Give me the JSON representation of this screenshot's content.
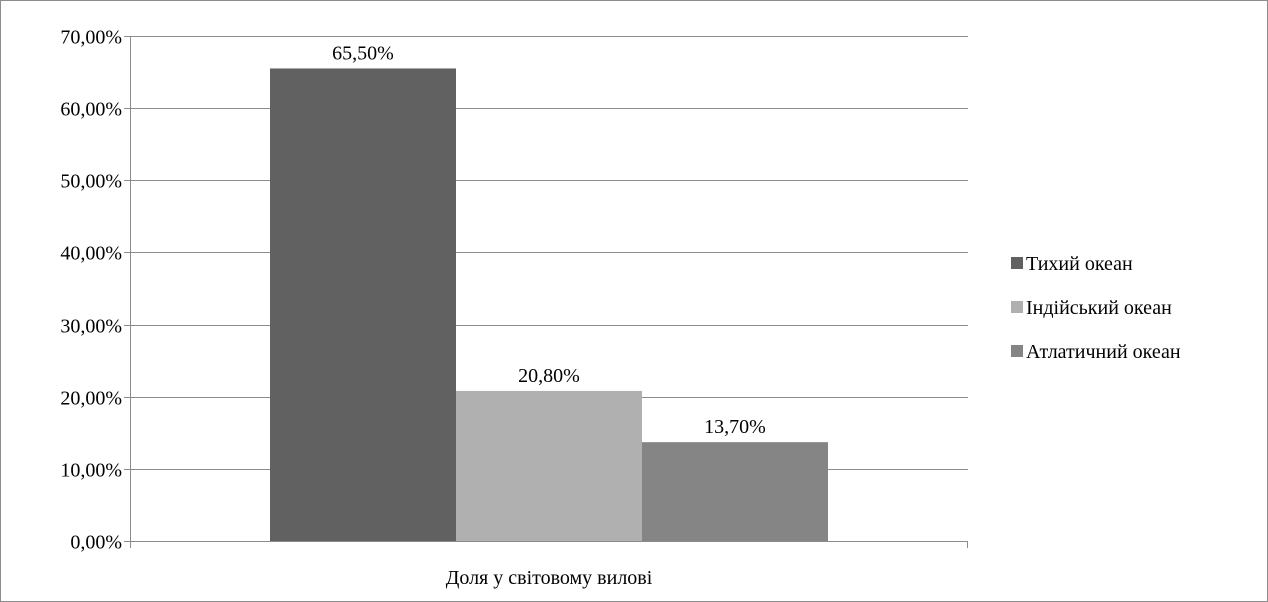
{
  "chart_data": {
    "type": "bar",
    "title": "",
    "xlabel": "",
    "ylabel": "",
    "categories": [
      "Доля у світовому вилові"
    ],
    "series": [
      {
        "name": "Тихий океан",
        "values": [
          65.5
        ],
        "label": "65,50%",
        "color": "#616161"
      },
      {
        "name": "Індійський океан",
        "values": [
          20.8
        ],
        "label": "20,80%",
        "color": "#b0b0b0"
      },
      {
        "name": "Атлатичний океан",
        "values": [
          13.7
        ],
        "label": "13,70%",
        "color": "#858585"
      }
    ],
    "ylim": [
      0,
      70
    ],
    "yticks": [
      0,
      10,
      20,
      30,
      40,
      50,
      60,
      70
    ],
    "ytick_labels": [
      "0,00%",
      "10,00%",
      "20,00%",
      "30,00%",
      "40,00%",
      "50,00%",
      "60,00%",
      "70,00%"
    ],
    "grid": true,
    "legend_position": "right"
  }
}
